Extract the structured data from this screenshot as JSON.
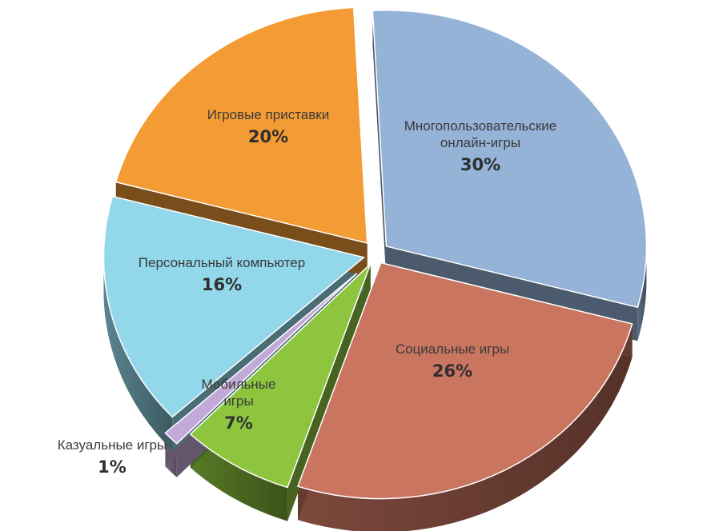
{
  "chart_data": {
    "type": "pie",
    "style": "3d-exploded",
    "slices": [
      {
        "label": "Многопользовательские онлайн-игры",
        "label_lines": [
          "Многопользовательские",
          "онлайн-игры"
        ],
        "value": 30,
        "value_label": "30%",
        "color": "#95B3D7"
      },
      {
        "label": "Социальные игры",
        "label_lines": [
          "Социальные игры"
        ],
        "value": 26,
        "value_label": "26%",
        "color": "#CA7560"
      },
      {
        "label": "Мобильные игры",
        "label_lines": [
          "Мобильные",
          "игры"
        ],
        "value": 7,
        "value_label": "7%",
        "color": "#8DC53E"
      },
      {
        "label": "Казуальные игры",
        "label_lines": [
          "Казуальные игры"
        ],
        "value": 1,
        "value_label": "1%",
        "color": "#C3A9D8"
      },
      {
        "label": "Персональный компьютер",
        "label_lines": [
          "Персональный компьютер"
        ],
        "value": 16,
        "value_label": "16%",
        "color": "#92D7EA"
      },
      {
        "label": "Игровые приставки",
        "label_lines": [
          "Игровые приставки"
        ],
        "value": 20,
        "value_label": "20%",
        "color": "#F39C35"
      }
    ]
  }
}
